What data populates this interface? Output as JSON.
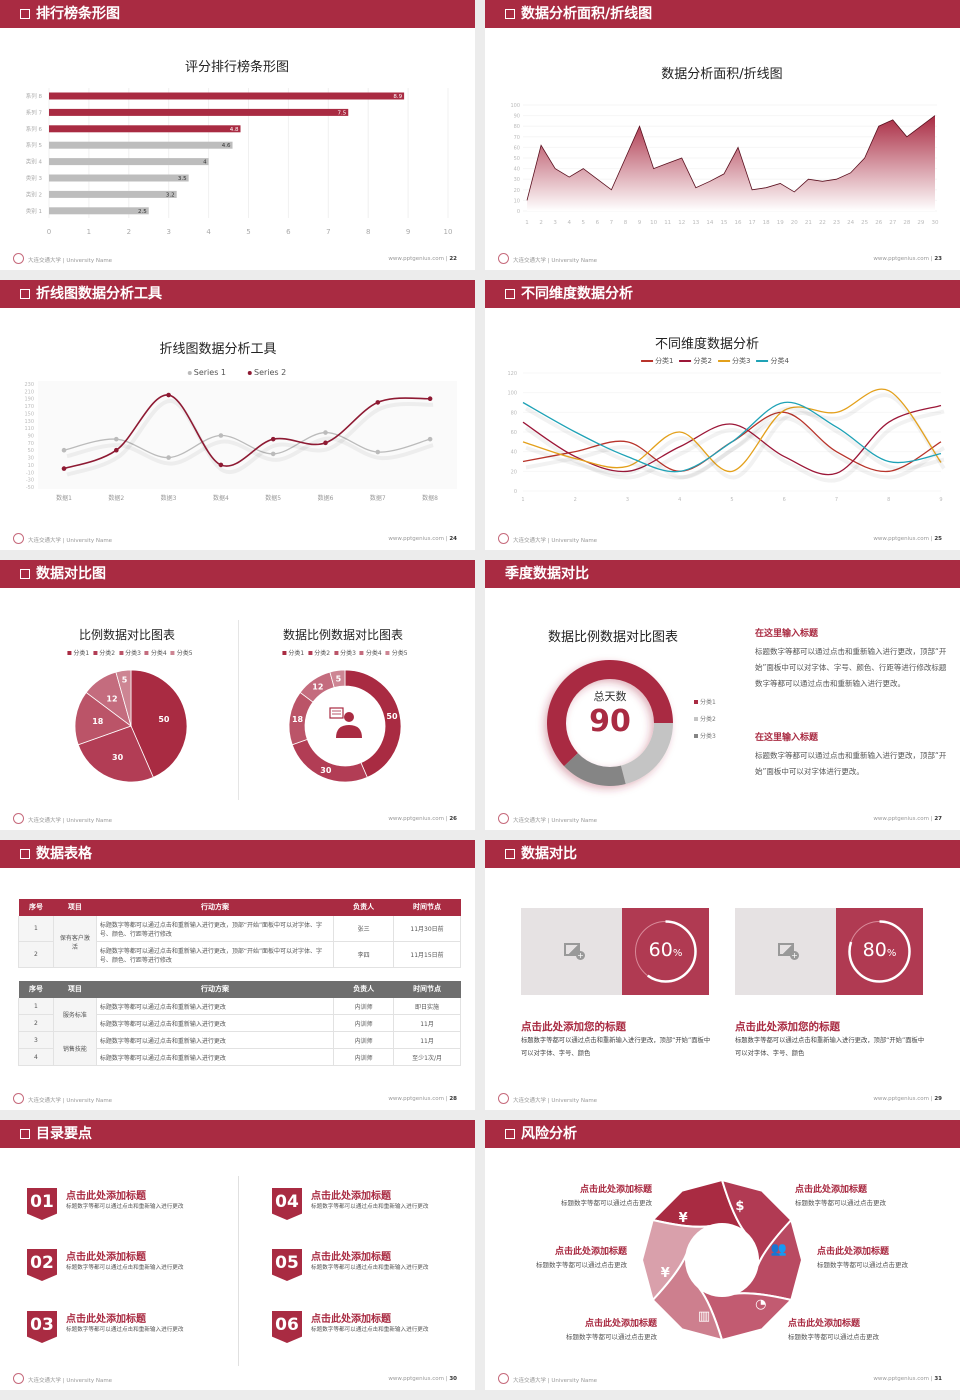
{
  "footer": {
    "school": "大连交通大学 | University Name",
    "site": "www.pptgenius.com"
  },
  "colors": {
    "brand": "#a92b42",
    "gray_bar": "#bdbdbd"
  },
  "slides": [
    {
      "header": "排行榜条形图",
      "page": "22"
    },
    {
      "header": "数据分析面积/折线图",
      "page": "23"
    },
    {
      "header": "折线图数据分析工具",
      "page": "24"
    },
    {
      "header": "不同维度数据分析",
      "page": "25"
    },
    {
      "header": "数据对比图",
      "page": "26"
    },
    {
      "header": "季度数据对比",
      "page": "27",
      "no_box": true
    },
    {
      "header": "数据表格",
      "page": "28"
    },
    {
      "header": "数据对比",
      "page": "29"
    },
    {
      "header": "目录要点",
      "page": "30"
    },
    {
      "header": "风险分析",
      "page": "31"
    }
  ],
  "chart_data": [
    {
      "type": "bar",
      "orientation": "horizontal",
      "title": "评分排行榜条形图",
      "categories": [
        "系列 8",
        "系列 7",
        "系列 6",
        "系列 5",
        "类别 4",
        "类别 3",
        "类别 2",
        "类别 1"
      ],
      "values": [
        8.9,
        7.5,
        4.8,
        4.6,
        4,
        3.5,
        3.2,
        2.5
      ],
      "highlight_colors": [
        "#a92b42",
        "#a92b42",
        "#a92b42",
        "#bdbdbd",
        "#bdbdbd",
        "#bdbdbd",
        "#bdbdbd",
        "#bdbdbd"
      ],
      "xlim": [
        0,
        10
      ],
      "xticks": [
        0,
        1,
        2,
        3,
        4,
        5,
        6,
        7,
        8,
        9,
        10
      ],
      "grid": true
    },
    {
      "type": "area",
      "title": "数据分析面积/折线图",
      "x": [
        1,
        2,
        3,
        4,
        5,
        6,
        7,
        8,
        9,
        10,
        11,
        12,
        13,
        14,
        15,
        16,
        17,
        18,
        19,
        20,
        21,
        22,
        23,
        24,
        25,
        26,
        27,
        28,
        29,
        30
      ],
      "values": [
        10,
        62,
        40,
        32,
        40,
        30,
        20,
        50,
        80,
        40,
        45,
        50,
        22,
        28,
        35,
        60,
        20,
        22,
        26,
        18,
        30,
        28,
        30,
        36,
        50,
        80,
        86,
        70,
        80,
        90
      ],
      "ylim": [
        0,
        100
      ],
      "yticks": [
        0,
        10,
        20,
        30,
        40,
        50,
        60,
        70,
        80,
        90,
        100
      ],
      "color": "#a92b42"
    },
    {
      "type": "line",
      "smooth": true,
      "title": "折线图数据分析工具",
      "categories": [
        "数据1",
        "数据2",
        "数据3",
        "数据4",
        "数据5",
        "数据6",
        "数据7",
        "数据8"
      ],
      "series": [
        {
          "name": "Series 1",
          "values": [
            50,
            80,
            30,
            90,
            40,
            98,
            45,
            80
          ],
          "color": "#bbbbbb"
        },
        {
          "name": "Series 2",
          "values": [
            0,
            50,
            200,
            10,
            80,
            70,
            180,
            190
          ],
          "color": "#8e1a33"
        }
      ],
      "ylim": [
        -50,
        230
      ],
      "yticks": [
        230,
        210,
        190,
        170,
        150,
        130,
        110,
        90,
        70,
        50,
        30,
        10,
        -10,
        -30,
        -50
      ],
      "legend": "top"
    },
    {
      "type": "line",
      "smooth": true,
      "title": "不同维度数据分析",
      "x": [
        1,
        2,
        3,
        4,
        5,
        6,
        7,
        8,
        9
      ],
      "series": [
        {
          "name": "分类1",
          "values": [
            30,
            40,
            50,
            20,
            50,
            80,
            40,
            20,
            50
          ],
          "color": "#b8342b"
        },
        {
          "name": "分类2",
          "values": [
            70,
            35,
            20,
            45,
            68,
            35,
            18,
            70,
            87
          ],
          "color": "#9c1738"
        },
        {
          "name": "分类3",
          "values": [
            50,
            33,
            25,
            60,
            20,
            82,
            80,
            102,
            29
          ],
          "color": "#e3a01b"
        },
        {
          "name": "分类4",
          "values": [
            90,
            60,
            35,
            20,
            50,
            90,
            65,
            30,
            38
          ],
          "color": "#1fa2b6"
        }
      ],
      "ylim": [
        0,
        120
      ],
      "yticks": [
        0,
        20,
        40,
        60,
        80,
        100,
        120
      ],
      "legend": "top"
    },
    {
      "type": "pie",
      "title": "比例数据对比图表",
      "categories": [
        "分类1",
        "分类2",
        "分类3",
        "分类4",
        "分类5"
      ],
      "values": [
        50,
        30,
        18,
        12,
        5
      ],
      "colors": [
        "#a92b42",
        "#b23d55",
        "#bb5468",
        "#c46c7e",
        "#cd8593"
      ],
      "legend": "top"
    },
    {
      "type": "pie",
      "donut": true,
      "title": "数据比例数据对比图表",
      "categories": [
        "分类1",
        "分类2",
        "分类3",
        "分类4",
        "分类5"
      ],
      "values": [
        50,
        30,
        18,
        12,
        5
      ],
      "colors": [
        "#a92b42",
        "#b23d55",
        "#bb5468",
        "#c46c7e",
        "#cd8593"
      ],
      "legend": "top",
      "center_icon": "presenter-icon"
    },
    {
      "type": "pie",
      "donut": true,
      "title": "数据比例数据对比图表",
      "categories": [
        "分类1",
        "分类2",
        "分类3"
      ],
      "values": [
        62,
        21,
        17
      ],
      "colors": [
        "#a92b42",
        "#c4c4c4",
        "#858585"
      ],
      "legend": "right",
      "center_label": "总天数",
      "center_value": "90"
    }
  ],
  "slide6": {
    "blocks": [
      {
        "title": "在这里输入标题",
        "text": "标题数字等都可以通过点击和重新输入进行更改，顶部“开始”面板中可以对字体、字号、颜色、行距等进行修改标题数字等都可以通过点击和重新输入进行更改。"
      },
      {
        "title": "在这里输入标题",
        "text": "标题数字等都可以通过点击和重新输入进行更改，顶部“开始”面板中可以对字体进行更改。"
      }
    ]
  },
  "tables": {
    "headers": [
      "序号",
      "项目",
      "行动方案",
      "负责人",
      "时间节点"
    ],
    "table1": {
      "group": "保有客户激活",
      "rows": [
        {
          "no": "1",
          "plan": "标题数字等都可以通过点击和重新输入进行更改，顶部“开始”面板中可以对字体、字号、颜色、行距等进行修改",
          "owner": "张三",
          "time": "11月30日前"
        },
        {
          "no": "2",
          "plan": "标题数字等都可以通过点击和重新输入进行更改，顶部“开始”面板中可以对字体、字号、颜色、行距等进行修改",
          "owner": "李四",
          "time": "11月15日前"
        }
      ]
    },
    "table2": {
      "groups": [
        "服务标准",
        "销售技能"
      ],
      "rows": [
        {
          "no": "1",
          "plan": "标题数字等都可以通过点击和重新输入进行更改",
          "owner": "内训师",
          "time": "即日实施"
        },
        {
          "no": "2",
          "plan": "标题数字等都可以通过点击和重新输入进行更改",
          "owner": "内训师",
          "time": "11月"
        },
        {
          "no": "3",
          "plan": "标题数字等都可以通过点击和重新输入进行更改",
          "owner": "内训师",
          "time": "11月"
        },
        {
          "no": "4",
          "plan": "标题数字等都可以通过点击和重新输入进行更改",
          "owner": "内训师",
          "time": "至少1次/月"
        }
      ]
    }
  },
  "slide8": {
    "cards": [
      {
        "percent": 60,
        "value": "60",
        "unit": "%",
        "title": "点击此处添加您的标题",
        "text": "标题数字等都可以通过点击和重新输入进行更改，顶部“开始”面板中可以对字体、字号、颜色",
        "icon": "image-placeholder-icon"
      },
      {
        "percent": 80,
        "value": "80",
        "unit": "%",
        "title": "点击此处添加您的标题",
        "text": "标题数字等都可以通过点击和重新输入进行更改，顶部“开始”面板中可以对字体、字号、颜色",
        "icon": "image-placeholder-icon"
      }
    ]
  },
  "slide9": {
    "items": [
      {
        "num": "01",
        "title": "点击此处添加标题",
        "sub": "标题数字等都可以通过点击和重新输入进行更改"
      },
      {
        "num": "02",
        "title": "点击此处添加标题",
        "sub": "标题数字等都可以通过点击和重新输入进行更改"
      },
      {
        "num": "03",
        "title": "点击此处添加标题",
        "sub": "标题数字等都可以通过点击和重新输入进行更改"
      },
      {
        "num": "04",
        "title": "点击此处添加标题",
        "sub": "标题数字等都可以通过点击和重新输入进行更改"
      },
      {
        "num": "05",
        "title": "点击此处添加标题",
        "sub": "标题数字等都可以通过点击和重新输入进行更改"
      },
      {
        "num": "06",
        "title": "点击此处添加标题",
        "sub": "标题数字等都可以通过点击和重新输入进行更改"
      }
    ]
  },
  "slide10": {
    "items": [
      {
        "title": "点击此处添加标题",
        "sub": "标题数字等都可以通过点击更改",
        "icon": "money-bag-icon"
      },
      {
        "title": "点击此处添加标题",
        "sub": "标题数字等都可以通过点击更改",
        "icon": "coins-icon"
      },
      {
        "title": "点击此处添加标题",
        "sub": "标题数字等都可以通过点击更改",
        "icon": "people-icon"
      },
      {
        "title": "点击此处添加标题",
        "sub": "标题数字等都可以通过点击更改",
        "icon": "pie-chart-icon"
      },
      {
        "title": "点击此处添加标题",
        "sub": "标题数字等都可以通过点击更改",
        "icon": "building-icon"
      },
      {
        "title": "点击此处添加标题",
        "sub": "标题数字等都可以通过点击更改",
        "icon": "hand-money-icon"
      }
    ]
  }
}
